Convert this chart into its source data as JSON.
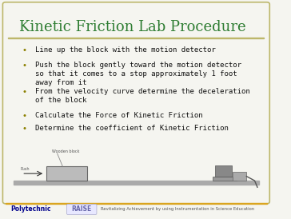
{
  "title": "Kinetic Friction Lab Procedure",
  "title_color": "#2E7D32",
  "title_fontsize": 13,
  "bg_color": "#F5F5F0",
  "border_color": "#BDB76B",
  "bullets": [
    "Line up the block with the motion detector",
    "Push the block gently toward the motion detector\nso that it comes to a stop approximately 1 foot\naway from it",
    "From the velocity curve determine the deceleration\nof the block",
    "Calculate the Force of Kinetic Friction",
    "Determine the coefficient of Kinetic Friction"
  ],
  "bullet_color": "#8B8000",
  "text_color": "#111111",
  "text_fontsize": 6.5,
  "footer_line_color": "#DAA520",
  "polytechnic_color": "#00008B",
  "raise_bg_color": "#E8E8FF",
  "raise_text_color": "#6666AA",
  "footer_small_color": "#555555",
  "footer_text": "Revitalizing Achievement by using Instrumentation in Science Education"
}
